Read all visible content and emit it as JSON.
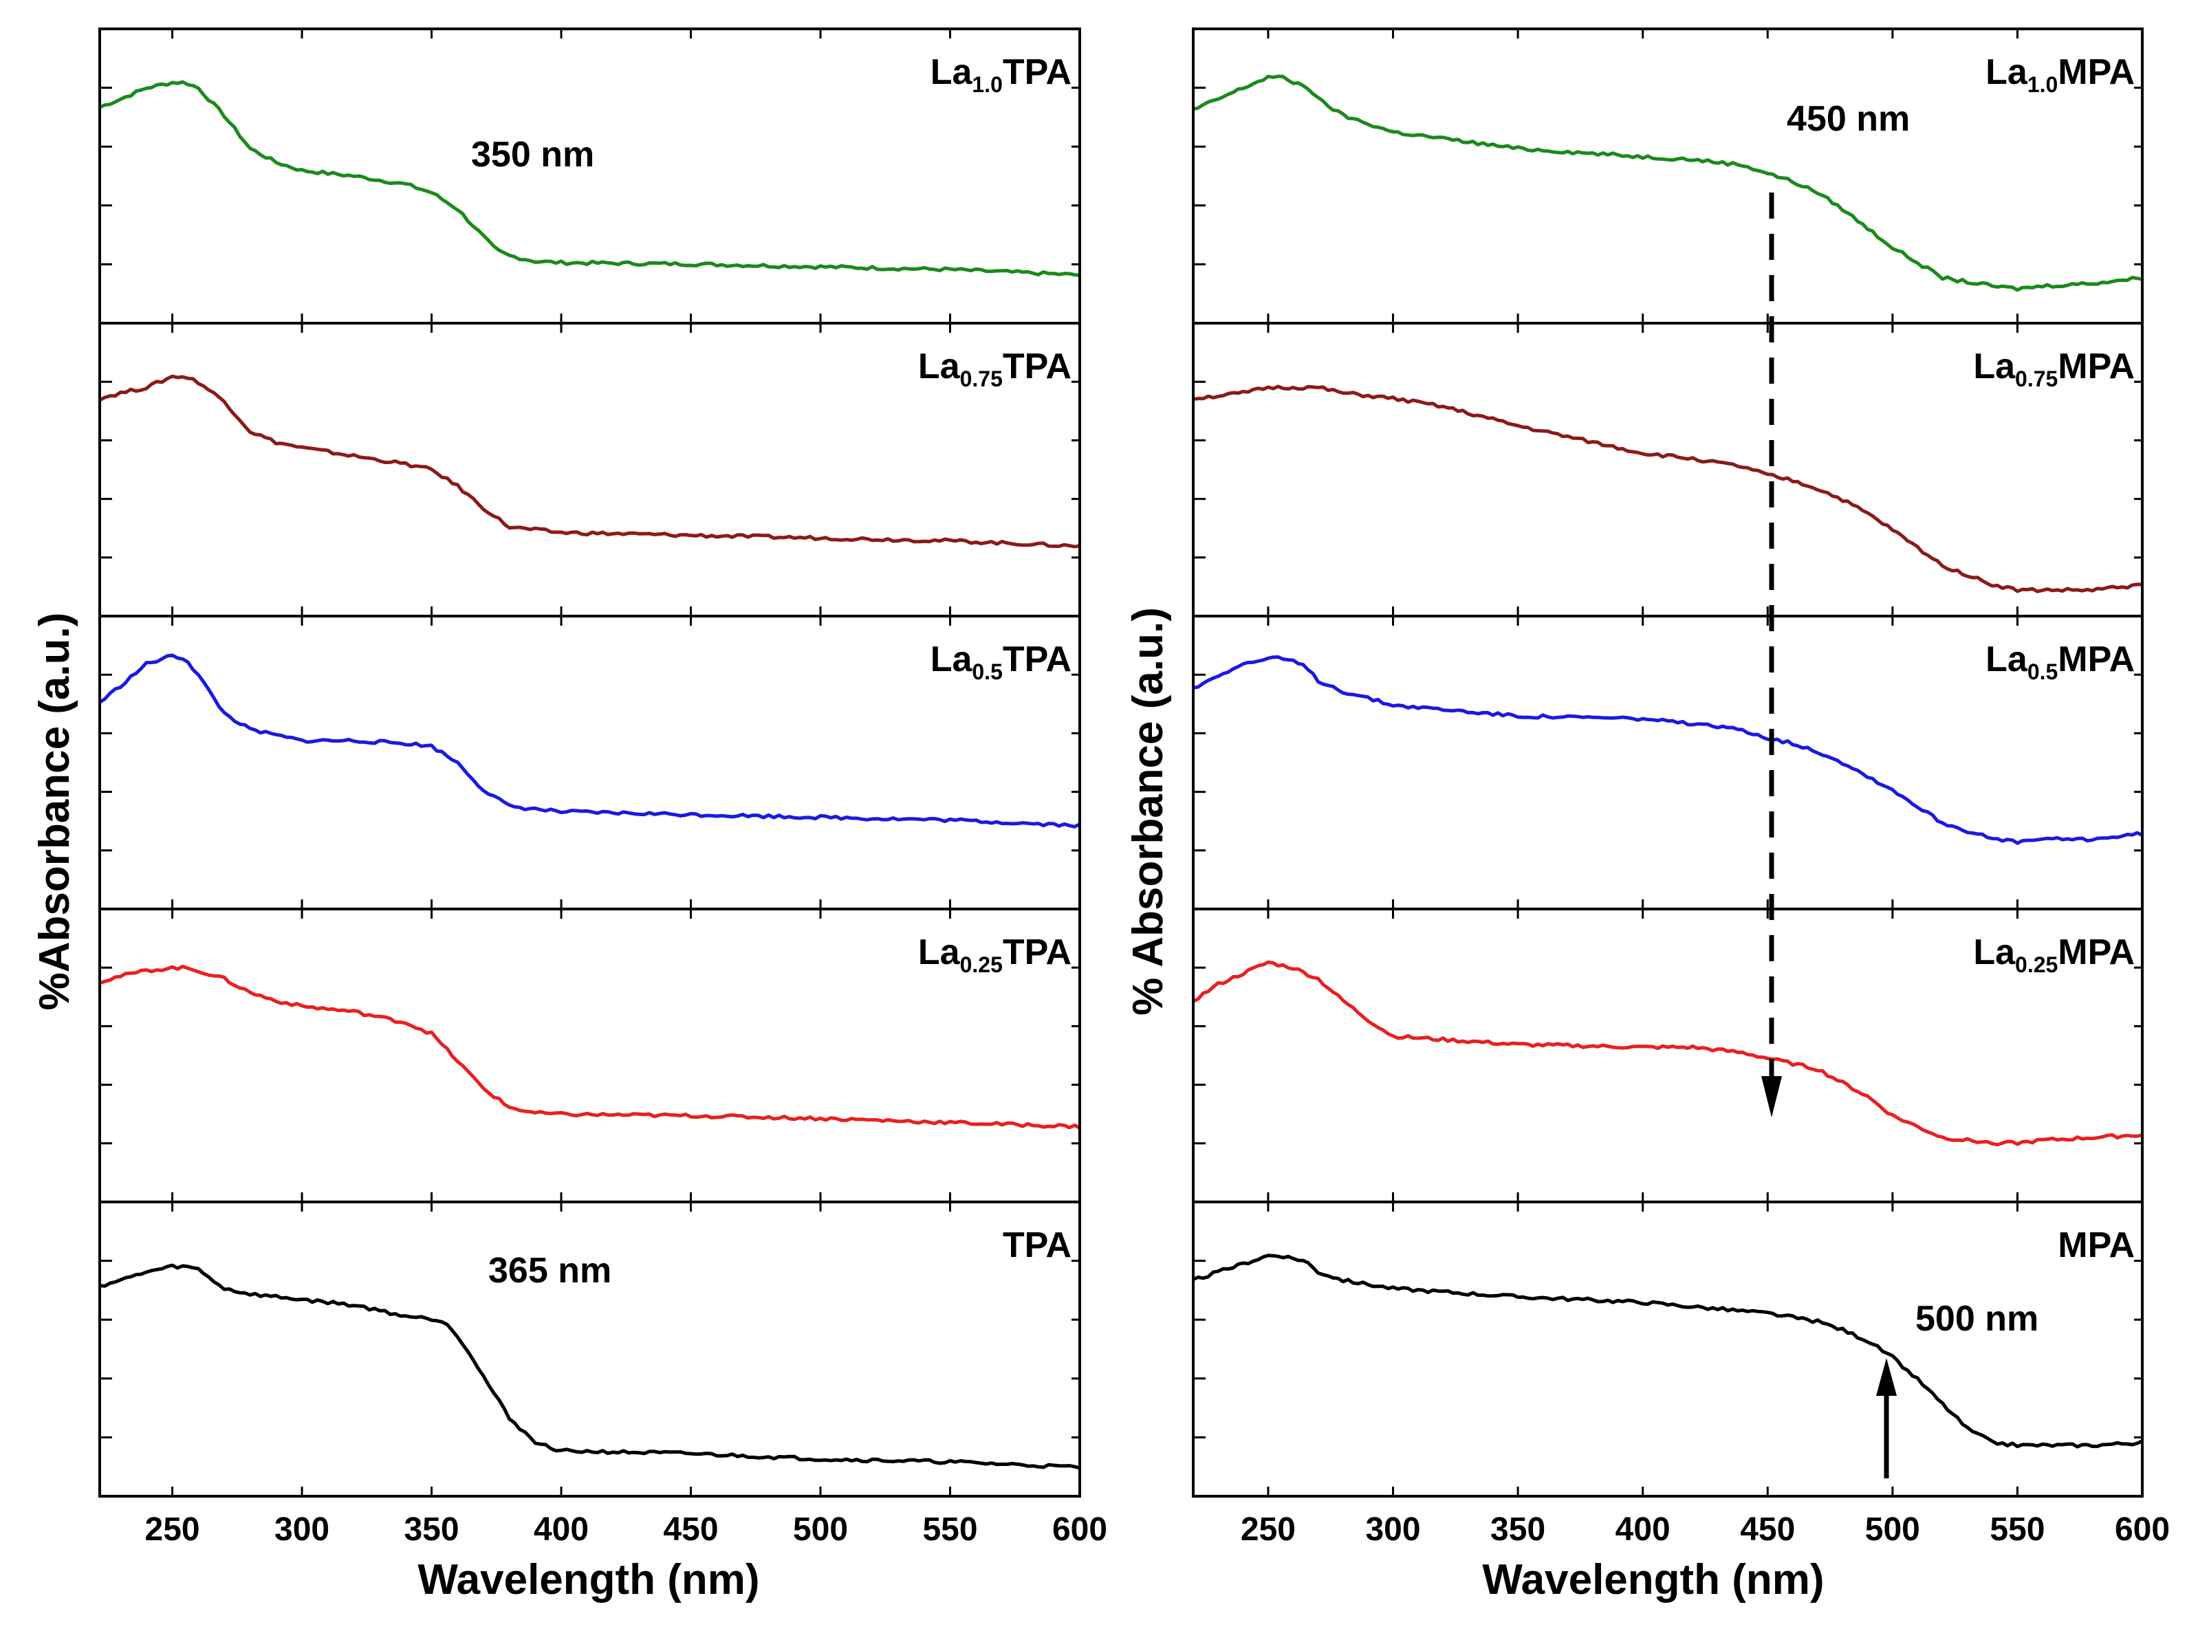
{
  "chart_data": [
    {
      "type": "line",
      "figure": "left",
      "title": "",
      "xlabel": "Wavelength (nm)",
      "ylabel": "%Absorbance (a.u.)",
      "xlim": [
        222,
        600
      ],
      "ylim": [
        0,
        1
      ],
      "xticks": [
        250,
        300,
        350,
        400,
        450,
        500,
        550,
        600
      ],
      "xtick_labels": [
        "250",
        "300",
        "350",
        "400",
        "450",
        "500",
        "550",
        "600"
      ],
      "grid": false,
      "series": [
        {
          "name": "La1.0TPA",
          "label_main": "La",
          "label_sub": "1.0",
          "label_tail": "TPA",
          "color": "#1a8a1a",
          "x": [
            222,
            230,
            240,
            250,
            255,
            260,
            270,
            280,
            290,
            300,
            320,
            340,
            350,
            360,
            370,
            375,
            380,
            390,
            400,
            450,
            500,
            550,
            600
          ],
          "y": [
            0.75,
            0.78,
            0.82,
            0.84,
            0.84,
            0.82,
            0.72,
            0.6,
            0.55,
            0.52,
            0.5,
            0.47,
            0.44,
            0.38,
            0.28,
            0.23,
            0.21,
            0.19,
            0.185,
            0.18,
            0.17,
            0.16,
            0.14
          ]
        },
        {
          "name": "La0.75TPA",
          "label_main": "La",
          "label_sub": "0.75",
          "label_tail": "TPA",
          "color": "#8b1a1a",
          "x": [
            222,
            230,
            240,
            250,
            255,
            260,
            270,
            280,
            290,
            300,
            320,
            340,
            350,
            360,
            370,
            380,
            390,
            400,
            450,
            500,
            550,
            600
          ],
          "y": [
            0.76,
            0.78,
            0.8,
            0.84,
            0.84,
            0.82,
            0.75,
            0.64,
            0.6,
            0.58,
            0.55,
            0.52,
            0.5,
            0.44,
            0.36,
            0.29,
            0.28,
            0.27,
            0.26,
            0.25,
            0.24,
            0.22
          ]
        },
        {
          "name": "La0.5TPA",
          "label_main": "La",
          "label_sub": "0.5",
          "label_tail": "TPA",
          "color": "#1a1ae0",
          "x": [
            222,
            230,
            240,
            250,
            255,
            260,
            270,
            280,
            290,
            300,
            320,
            340,
            350,
            360,
            370,
            380,
            390,
            400,
            450,
            500,
            550,
            600
          ],
          "y": [
            0.72,
            0.78,
            0.86,
            0.89,
            0.88,
            0.82,
            0.68,
            0.62,
            0.6,
            0.58,
            0.58,
            0.57,
            0.56,
            0.5,
            0.4,
            0.34,
            0.33,
            0.32,
            0.31,
            0.3,
            0.29,
            0.27
          ]
        },
        {
          "name": "La0.25TPA",
          "label_main": "La",
          "label_sub": "0.25",
          "label_tail": "TPA",
          "color": "#e82020",
          "x": [
            222,
            230,
            240,
            250,
            255,
            260,
            270,
            280,
            290,
            300,
            320,
            340,
            350,
            360,
            370,
            380,
            390,
            400,
            450,
            500,
            550,
            600
          ],
          "y": [
            0.77,
            0.79,
            0.81,
            0.82,
            0.82,
            0.81,
            0.78,
            0.73,
            0.7,
            0.68,
            0.66,
            0.62,
            0.58,
            0.48,
            0.38,
            0.31,
            0.29,
            0.285,
            0.28,
            0.27,
            0.255,
            0.24
          ]
        },
        {
          "name": "TPA",
          "label_main": "TPA",
          "label_sub": "",
          "label_tail": "",
          "color": "#000000",
          "x": [
            222,
            230,
            240,
            250,
            255,
            260,
            270,
            280,
            290,
            300,
            320,
            340,
            350,
            355,
            360,
            365,
            370,
            380,
            390,
            400,
            450,
            500,
            550,
            600
          ],
          "y": [
            0.73,
            0.75,
            0.78,
            0.8,
            0.8,
            0.79,
            0.72,
            0.7,
            0.69,
            0.68,
            0.66,
            0.62,
            0.61,
            0.6,
            0.55,
            0.48,
            0.4,
            0.25,
            0.16,
            0.13,
            0.12,
            0.1,
            0.09,
            0.07
          ]
        }
      ],
      "annotations": [
        {
          "text": "350 nm",
          "panel": "La1.0TPA"
        },
        {
          "text": "365 nm",
          "panel": "TPA"
        }
      ]
    },
    {
      "type": "line",
      "figure": "right",
      "title": "",
      "xlabel": "Wavelength (nm)",
      "ylabel": "% Absorbance (a.u.)",
      "xlim": [
        220,
        600
      ],
      "ylim": [
        0,
        1
      ],
      "xticks": [
        250,
        300,
        350,
        400,
        450,
        500,
        550,
        600
      ],
      "xtick_labels": [
        "250",
        "300",
        "350",
        "400",
        "450",
        "500",
        "550",
        "600"
      ],
      "grid": false,
      "series": [
        {
          "name": "La1.0MPA",
          "label_main": "La",
          "label_sub": "1.0",
          "label_tail": "MPA",
          "color": "#1a8a1a",
          "x": [
            220,
            230,
            240,
            250,
            255,
            260,
            265,
            270,
            280,
            300,
            350,
            400,
            420,
            440,
            450,
            460,
            470,
            480,
            490,
            500,
            520,
            540,
            550,
            560,
            580,
            600
          ],
          "y": [
            0.74,
            0.78,
            0.82,
            0.86,
            0.86,
            0.84,
            0.83,
            0.78,
            0.72,
            0.66,
            0.6,
            0.57,
            0.56,
            0.54,
            0.51,
            0.48,
            0.44,
            0.38,
            0.31,
            0.24,
            0.13,
            0.1,
            0.09,
            0.1,
            0.11,
            0.13
          ]
        },
        {
          "name": "La0.75MPA",
          "label_main": "La",
          "label_sub": "0.75",
          "label_tail": "MPA",
          "color": "#8b1a1a",
          "x": [
            220,
            230,
            240,
            250,
            255,
            260,
            270,
            275,
            280,
            300,
            320,
            350,
            400,
            420,
            440,
            450,
            460,
            470,
            480,
            490,
            500,
            520,
            540,
            550,
            560,
            580,
            600
          ],
          "y": [
            0.76,
            0.77,
            0.78,
            0.8,
            0.8,
            0.8,
            0.8,
            0.79,
            0.78,
            0.76,
            0.73,
            0.66,
            0.56,
            0.54,
            0.51,
            0.48,
            0.46,
            0.43,
            0.39,
            0.34,
            0.28,
            0.15,
            0.08,
            0.06,
            0.06,
            0.06,
            0.08
          ]
        },
        {
          "name": "La0.5MPA",
          "label_main": "La",
          "label_sub": "0.5",
          "label_tail": "MPA",
          "color": "#1a1ae0",
          "x": [
            220,
            230,
            240,
            250,
            255,
            260,
            265,
            270,
            280,
            300,
            350,
            400,
            420,
            440,
            450,
            460,
            470,
            480,
            490,
            500,
            520,
            540,
            550,
            560,
            580,
            600
          ],
          "y": [
            0.77,
            0.82,
            0.86,
            0.88,
            0.88,
            0.87,
            0.85,
            0.8,
            0.76,
            0.71,
            0.67,
            0.66,
            0.64,
            0.62,
            0.59,
            0.57,
            0.54,
            0.5,
            0.45,
            0.4,
            0.28,
            0.22,
            0.21,
            0.22,
            0.22,
            0.24
          ]
        },
        {
          "name": "La0.25MPA",
          "label_main": "La",
          "label_sub": "0.25",
          "label_tail": "MPA",
          "color": "#e82020",
          "x": [
            220,
            230,
            240,
            250,
            255,
            260,
            270,
            280,
            290,
            300,
            350,
            400,
            420,
            440,
            450,
            460,
            470,
            480,
            490,
            500,
            520,
            540,
            550,
            560,
            580,
            600
          ],
          "y": [
            0.7,
            0.76,
            0.8,
            0.84,
            0.83,
            0.82,
            0.78,
            0.7,
            0.63,
            0.57,
            0.54,
            0.53,
            0.53,
            0.51,
            0.49,
            0.47,
            0.45,
            0.4,
            0.35,
            0.28,
            0.2,
            0.18,
            0.18,
            0.19,
            0.2,
            0.21
          ]
        },
        {
          "name": "MPA",
          "label_main": "MPA",
          "label_sub": "",
          "label_tail": "",
          "color": "#000000",
          "x": [
            220,
            230,
            240,
            250,
            255,
            260,
            265,
            270,
            280,
            300,
            350,
            400,
            450,
            470,
            480,
            490,
            500,
            510,
            520,
            530,
            540,
            550,
            560,
            580,
            600
          ],
          "y": [
            0.75,
            0.78,
            0.81,
            0.84,
            0.84,
            0.83,
            0.82,
            0.78,
            0.75,
            0.72,
            0.69,
            0.67,
            0.63,
            0.6,
            0.57,
            0.53,
            0.47,
            0.39,
            0.3,
            0.21,
            0.16,
            0.15,
            0.15,
            0.15,
            0.16
          ]
        }
      ],
      "annotations": [
        {
          "text": "450 nm",
          "panel": "La1.0MPA"
        },
        {
          "text": "500 nm",
          "panel": "MPA"
        }
      ]
    }
  ]
}
